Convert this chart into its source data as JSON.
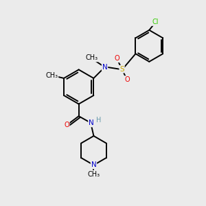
{
  "background_color": "#ebebeb",
  "figsize": [
    3.0,
    3.0
  ],
  "dpi": 100,
  "atom_colors": {
    "C": "#000000",
    "N": "#0000cc",
    "O": "#ee0000",
    "S": "#ccaa00",
    "Cl": "#33cc00",
    "H": "#6699aa"
  },
  "bond_color": "#000000",
  "bond_lw": 1.4,
  "font_size": 7.5,
  "xlim": [
    0,
    10
  ],
  "ylim": [
    0,
    10
  ]
}
